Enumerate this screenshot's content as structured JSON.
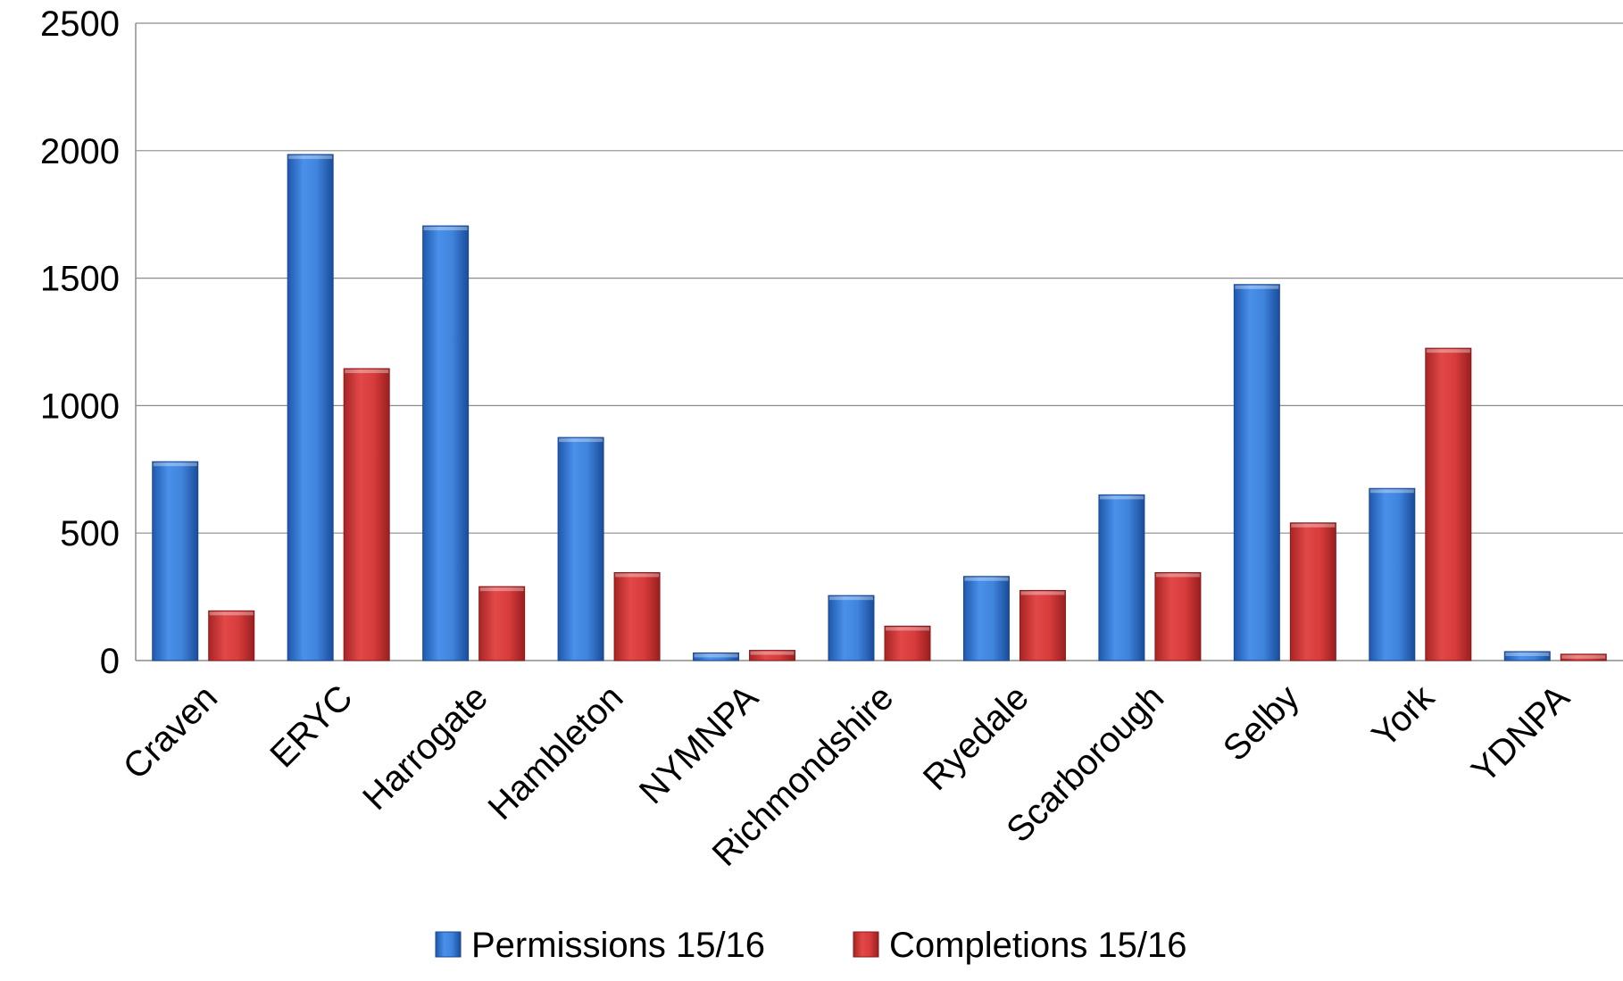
{
  "chart_data": {
    "type": "bar",
    "title": "",
    "xlabel": "",
    "ylabel": "",
    "ylim": [
      0,
      2500
    ],
    "yticks": [
      0,
      500,
      1000,
      1500,
      2000,
      2500
    ],
    "grid": true,
    "legend_position": "bottom",
    "categories": [
      "Craven",
      "ERYC",
      "Harrogate",
      "Hambleton",
      "NYMNPA",
      "Richmondshire",
      "Ryedale",
      "Scarborough",
      "Selby",
      "York",
      "YDNPA"
    ],
    "series": [
      {
        "name": "Permissions 15/16",
        "color": "#3a7dd8",
        "values": [
          780,
          1985,
          1705,
          875,
          30,
          255,
          330,
          650,
          1475,
          675,
          35
        ]
      },
      {
        "name": "Completions 15/16",
        "color": "#d63a3a",
        "values": [
          195,
          1145,
          290,
          345,
          40,
          135,
          275,
          345,
          540,
          1225,
          25
        ]
      }
    ]
  }
}
